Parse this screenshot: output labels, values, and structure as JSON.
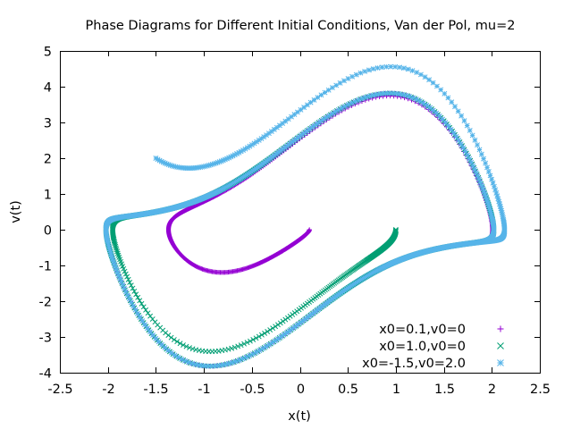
{
  "chart_data": {
    "type": "scatter",
    "title": "Phase Diagrams for Different Initial Conditions, Van der Pol, mu=2",
    "xlabel": "x(t)",
    "ylabel": "v(t)",
    "xlim": [
      -2.5,
      2.5
    ],
    "ylim": [
      -4,
      5
    ],
    "xticks": [
      "-2.5",
      "-2",
      "-1.5",
      "-1",
      "-0.5",
      "0",
      "0.5",
      "1",
      "1.5",
      "2",
      "2.5"
    ],
    "yticks": [
      "-4",
      "-3",
      "-2",
      "-1",
      "0",
      "1",
      "2",
      "3",
      "4",
      "5"
    ],
    "grid": false,
    "legend_position": "bottom-right",
    "mu": 2,
    "series": [
      {
        "name": "x0=0.1,v0=0",
        "x0": 0.1,
        "v0": 0,
        "color": "#9400D3",
        "marker": "+"
      },
      {
        "name": "x0=1.0,v0=0",
        "x0": 1.0,
        "v0": 0,
        "color": "#009E73",
        "marker": "x"
      },
      {
        "name": "x0=-1.5,v0=2.0",
        "x0": -1.5,
        "v0": 2.0,
        "color": "#56B4E9",
        "marker": "*"
      }
    ]
  }
}
